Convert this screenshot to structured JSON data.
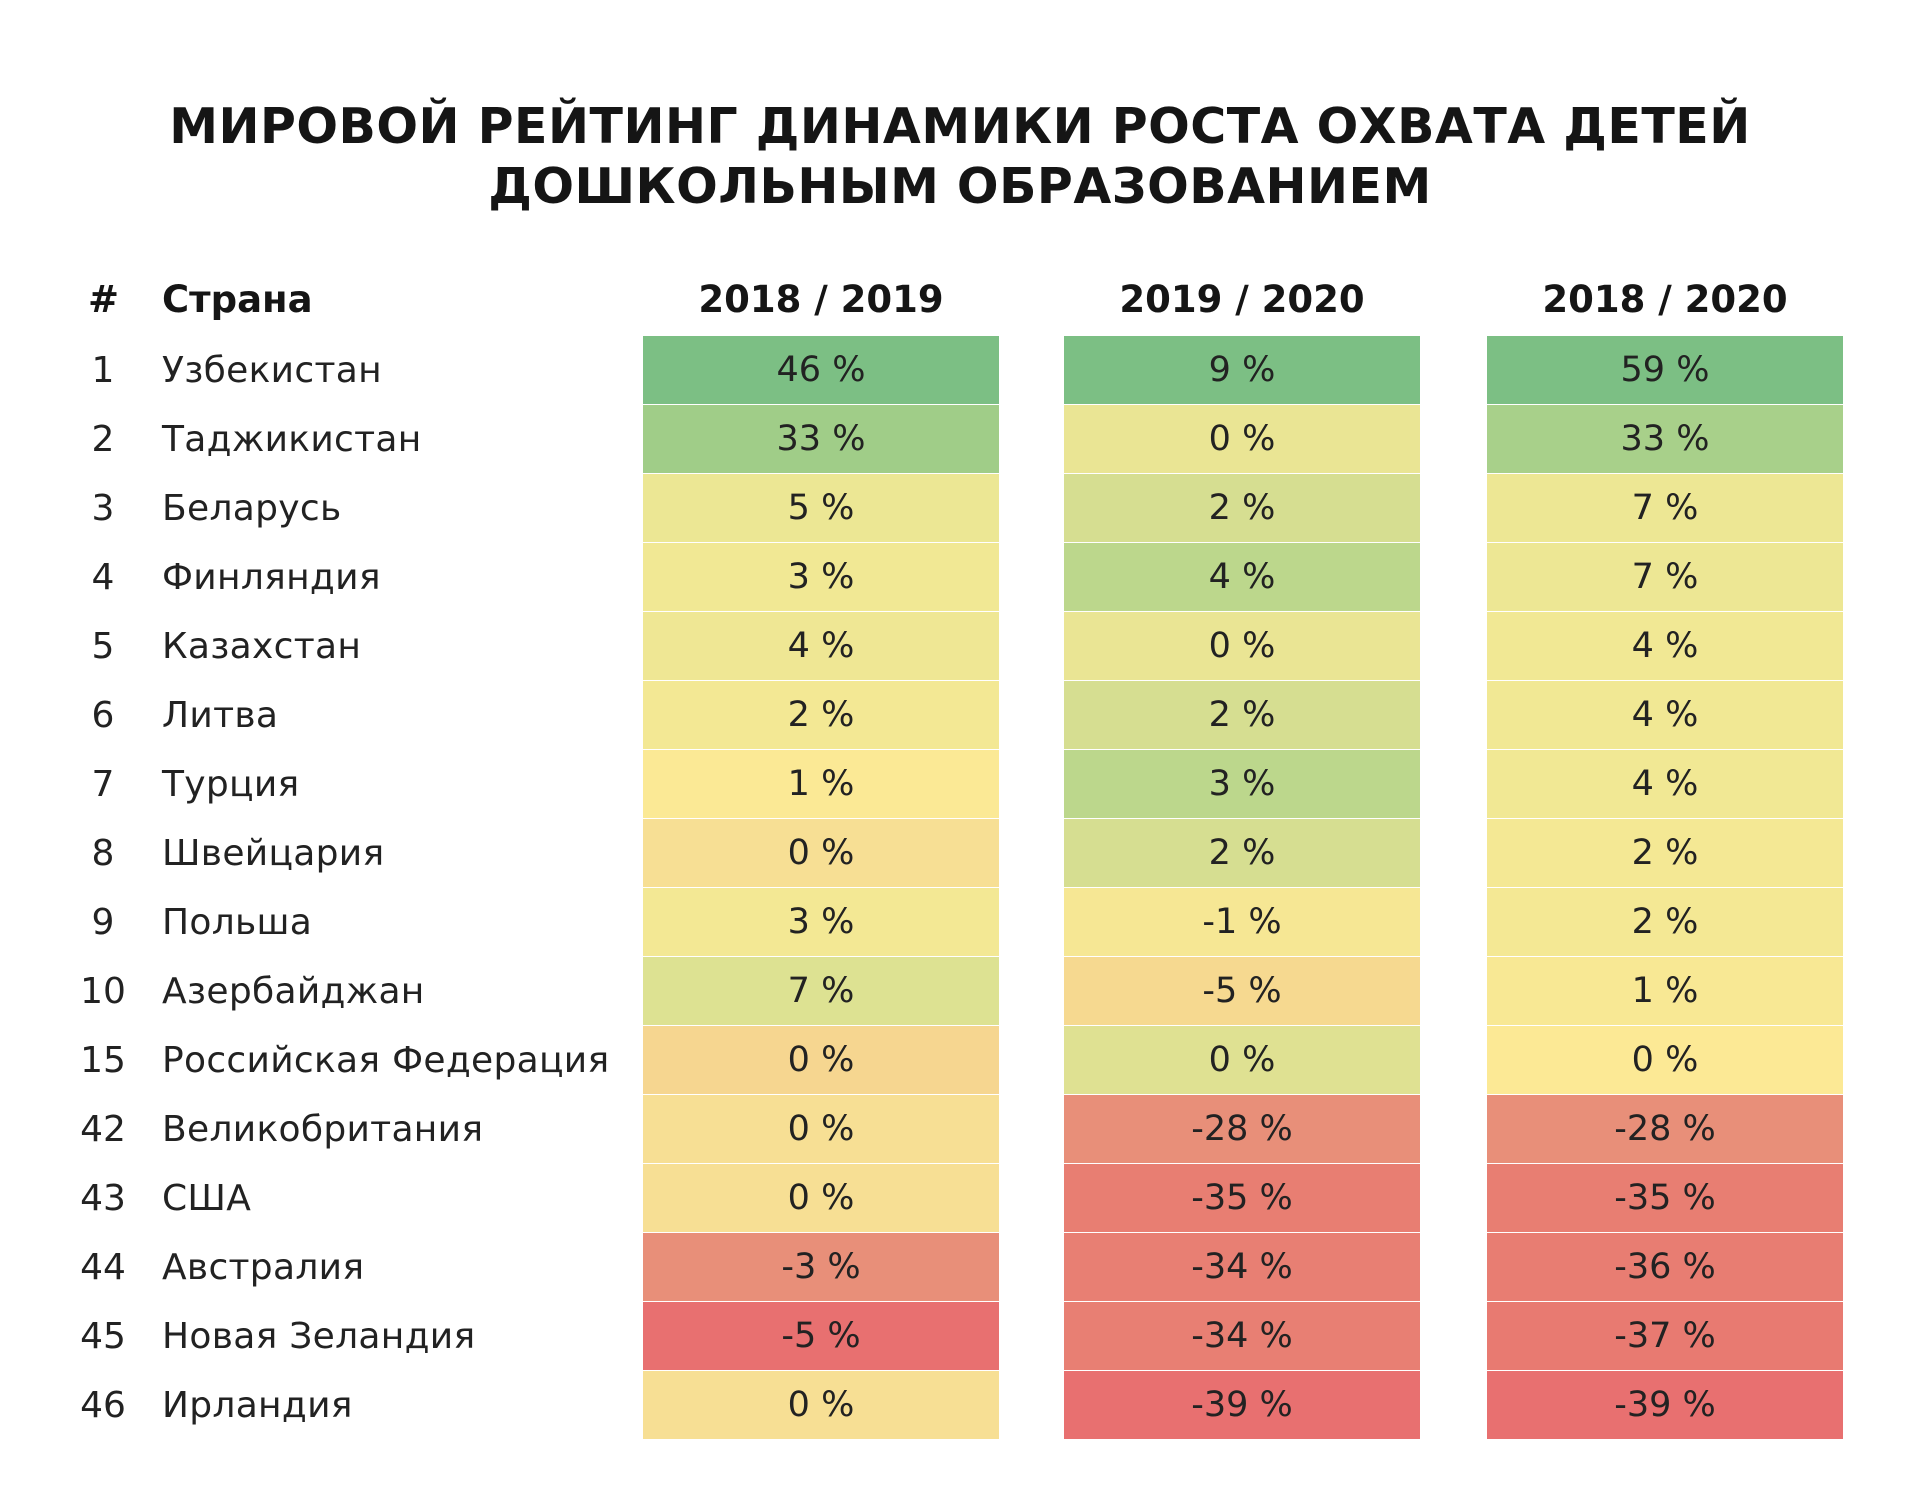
{
  "chart_data": {
    "type": "table",
    "title": "МИРОВОЙ РЕЙТИНГ ДИНАМИКИ РОСТА ОХВАТА ДЕТЕЙ ДОШКОЛЬНЫМ ОБРАЗОВАНИЕМ",
    "title_lines": [
      "МИРОВОЙ РЕЙТИНГ ДИНАМИКИ РОСТА ОХВАТА ДЕТЕЙ",
      "ДОШКОЛЬНЫМ ОБРАЗОВАНИЕМ"
    ],
    "columns": {
      "rank": "#",
      "country": "Страна",
      "periods": [
        "2018 / 2019",
        "2019 / 2020",
        "2018 / 2020"
      ]
    },
    "unit": "%",
    "rows": [
      {
        "rank": "1",
        "country": "Узбекистан",
        "values": [
          46,
          9,
          59
        ],
        "labels": [
          "46 %",
          "9 %",
          "59 %"
        ]
      },
      {
        "rank": "2",
        "country": "Таджикистан",
        "values": [
          33,
          0,
          33
        ],
        "labels": [
          "33 %",
          "0 %",
          "33 %"
        ]
      },
      {
        "rank": "3",
        "country": "Беларусь",
        "values": [
          5,
          2,
          7
        ],
        "labels": [
          "5 %",
          "2 %",
          "7 %"
        ]
      },
      {
        "rank": "4",
        "country": "Финляндия",
        "values": [
          3,
          4,
          7
        ],
        "labels": [
          "3 %",
          "4 %",
          "7 %"
        ]
      },
      {
        "rank": "5",
        "country": "Казахстан",
        "values": [
          4,
          0,
          4
        ],
        "labels": [
          "4 %",
          "0 %",
          "4 %"
        ]
      },
      {
        "rank": "6",
        "country": "Литва",
        "values": [
          2,
          2,
          4
        ],
        "labels": [
          "2 %",
          "2 %",
          "4 %"
        ]
      },
      {
        "rank": "7",
        "country": "Турция",
        "values": [
          1,
          3,
          4
        ],
        "labels": [
          "1 %",
          "3 %",
          "4 %"
        ]
      },
      {
        "rank": "8",
        "country": "Швейцария",
        "values": [
          0,
          2,
          2
        ],
        "labels": [
          "0 %",
          "2 %",
          "2 %"
        ]
      },
      {
        "rank": "9",
        "country": "Польша",
        "values": [
          3,
          -1,
          2
        ],
        "labels": [
          "3 %",
          "-1 %",
          "2 %"
        ]
      },
      {
        "rank": "10",
        "country": "Азербайджан",
        "values": [
          7,
          -5,
          1
        ],
        "labels": [
          "7 %",
          "-5 %",
          "1 %"
        ]
      },
      {
        "rank": "15",
        "country": "Российская Федерация",
        "values": [
          0,
          0,
          0
        ],
        "labels": [
          "0 %",
          "0 %",
          "0 %"
        ]
      },
      {
        "rank": "42",
        "country": "Великобритания",
        "values": [
          0,
          -28,
          -28
        ],
        "labels": [
          "0 %",
          "-28 %",
          "-28 %"
        ]
      },
      {
        "rank": "43",
        "country": "США",
        "values": [
          0,
          -35,
          -35
        ],
        "labels": [
          "0 %",
          "-35 %",
          "-35 %"
        ]
      },
      {
        "rank": "44",
        "country": "Австралия",
        "values": [
          -3,
          -34,
          -36
        ],
        "labels": [
          "-3 %",
          "-34 %",
          "-36 %"
        ]
      },
      {
        "rank": "45",
        "country": "Новая Зеландия",
        "values": [
          -5,
          -34,
          -37
        ],
        "labels": [
          "-5 %",
          "-34 %",
          "-37 %"
        ]
      },
      {
        "rank": "46",
        "country": "Ирландия",
        "values": [
          0,
          -39,
          -39
        ],
        "labels": [
          "0 %",
          "-39 %",
          "-39 %"
        ]
      }
    ],
    "cell_colors": [
      [
        "#7cbf84",
        "#7cbf84",
        "#7cbf84"
      ],
      [
        "#a0cd88",
        "#eae594",
        "#a8d08a"
      ],
      [
        "#ece794",
        "#d6de91",
        "#ede794"
      ],
      [
        "#f1e894",
        "#bcd78c",
        "#ede794"
      ],
      [
        "#efe794",
        "#eae594",
        "#f1e894"
      ],
      [
        "#f3e894",
        "#d6de91",
        "#f1e894"
      ],
      [
        "#fbe995",
        "#bcd78c",
        "#f1e894"
      ],
      [
        "#f7df94",
        "#d6de91",
        "#f4e894"
      ],
      [
        "#f3e894",
        "#f6e794",
        "#f4e894"
      ],
      [
        "#dde292",
        "#f6d990",
        "#f8e894"
      ],
      [
        "#f6d690",
        "#dfe192",
        "#fce995"
      ],
      [
        "#f7df94",
        "#e88f79",
        "#e88f79"
      ],
      [
        "#f7df94",
        "#e87e72",
        "#e87e72"
      ],
      [
        "#e88f79",
        "#e87f73",
        "#e87d72"
      ],
      [
        "#e87070",
        "#e87f73",
        "#e87a71"
      ],
      [
        "#f7df94",
        "#e87070",
        "#e87070"
      ]
    ]
  }
}
